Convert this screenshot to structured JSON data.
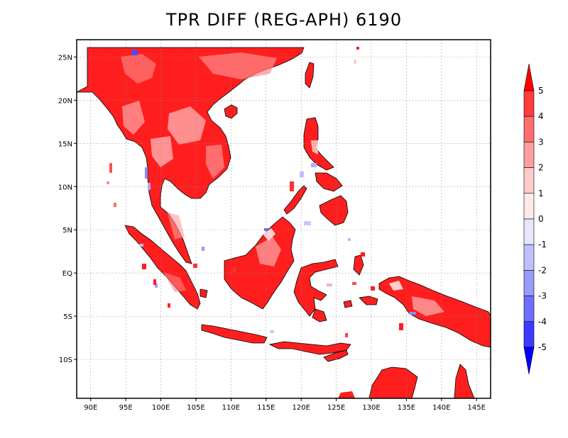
{
  "title": "TPR DIFF (REG-APH) 6190",
  "map": {
    "lon_range": [
      88,
      147
    ],
    "lat_range": [
      -14.5,
      27
    ],
    "x_ticks": [
      {
        "value": 90,
        "label": "90E"
      },
      {
        "value": 95,
        "label": "95E"
      },
      {
        "value": 100,
        "label": "100E"
      },
      {
        "value": 105,
        "label": "105E"
      },
      {
        "value": 110,
        "label": "110E"
      },
      {
        "value": 115,
        "label": "115E"
      },
      {
        "value": 120,
        "label": "120E"
      },
      {
        "value": 125,
        "label": "125E"
      },
      {
        "value": 130,
        "label": "130E"
      },
      {
        "value": 135,
        "label": "135E"
      },
      {
        "value": 140,
        "label": "140E"
      },
      {
        "value": 145,
        "label": "145E"
      }
    ],
    "y_ticks": [
      {
        "value": 25,
        "label": "25N"
      },
      {
        "value": 20,
        "label": "20N"
      },
      {
        "value": 15,
        "label": "15N"
      },
      {
        "value": 10,
        "label": "10N"
      },
      {
        "value": 5,
        "label": "5N"
      },
      {
        "value": 0,
        "label": "EQ"
      },
      {
        "value": -5,
        "label": "5S"
      },
      {
        "value": -10,
        "label": "10S"
      }
    ],
    "grid": true,
    "grid_style": "dotted"
  },
  "colorbar": {
    "labels": [
      "5",
      "4",
      "3",
      "2",
      "1",
      "0",
      "-1",
      "-2",
      "-3",
      "-4",
      "-5"
    ],
    "colors": [
      "#ff0000",
      "#ff3c3c",
      "#ff6e6e",
      "#ff9e9e",
      "#ffcaca",
      "#ffeaea",
      "#e6e6ff",
      "#c0c0ff",
      "#9a9aff",
      "#6e6eff",
      "#3c3cff",
      "#0000ff"
    ]
  },
  "palette": {
    "land_main": "#ff1e1e",
    "land_mid": "#ff6060",
    "land_light": "#ffaaaa",
    "land_pale": "#ffe0e0",
    "blue_light": "#c8c8ff",
    "blue_mid": "#7070ff",
    "coast": "#000000"
  }
}
